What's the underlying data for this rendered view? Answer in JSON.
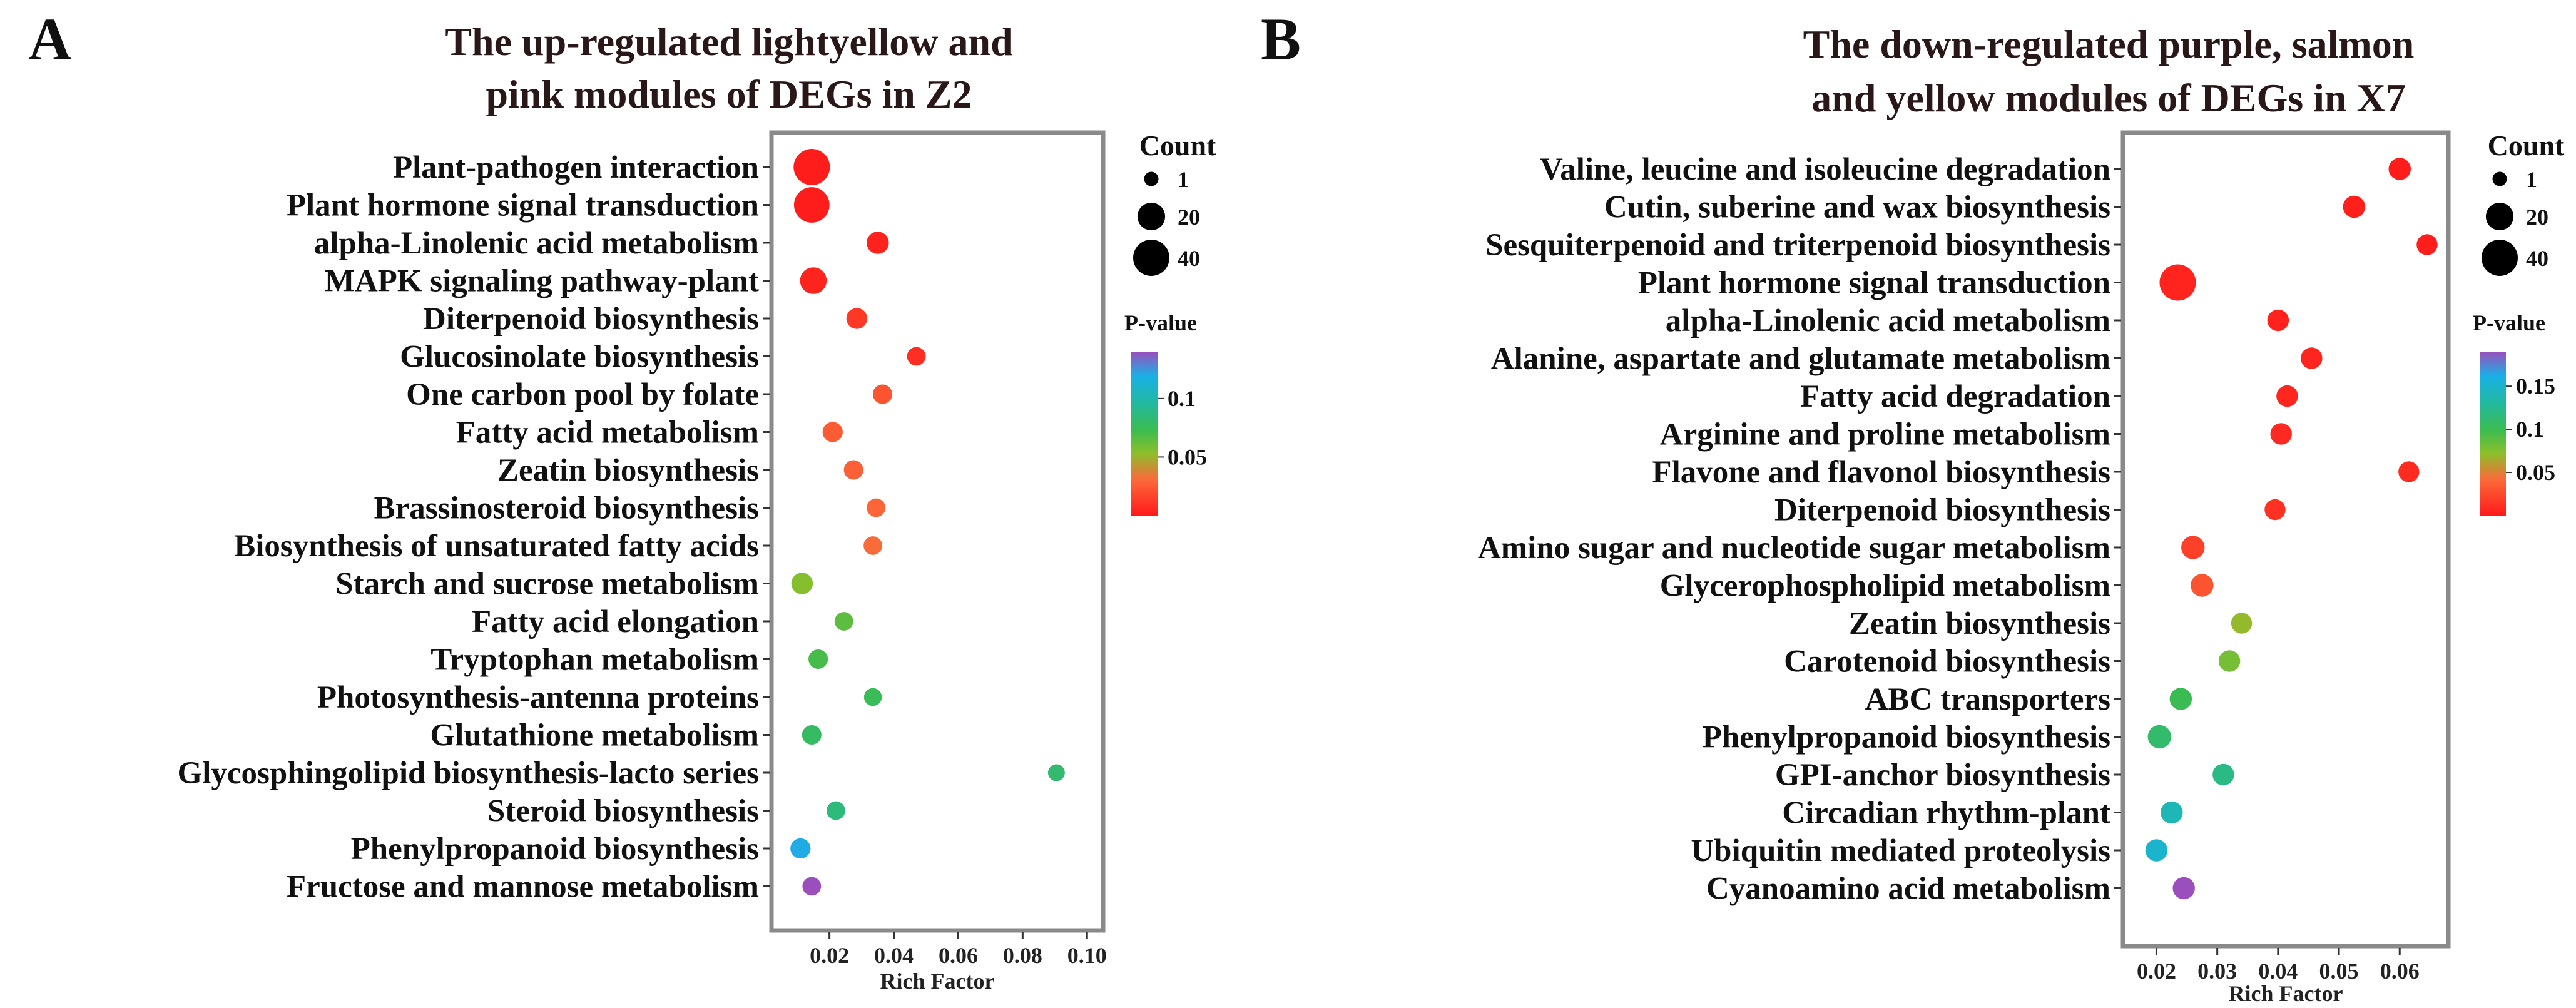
{
  "chart_data": [
    {
      "type": "scatter",
      "panel_label": "A",
      "title_lines": [
        "The up-regulated lightyellow and",
        "pink modules of DEGs in Z2"
      ],
      "xlabel": "Rich  Factor",
      "ylabel": "",
      "xlim": [
        0.002,
        0.105
      ],
      "xticks": [
        0.02,
        0.04,
        0.06,
        0.08,
        0.1
      ],
      "xtick_labels": [
        "0.02",
        "0.04",
        "0.06",
        "0.08",
        "0.10"
      ],
      "grid": false,
      "size_legend": {
        "title": "Count",
        "values": [
          1,
          20,
          40
        ],
        "labels": [
          "1",
          "20",
          "40"
        ]
      },
      "color_legend": {
        "title": "P-value",
        "ticks": [
          0.05,
          0.1
        ],
        "tick_labels": [
          "0.05",
          "0.1"
        ],
        "range": [
          0,
          0.14
        ]
      },
      "categories": [
        "Plant-pathogen interaction",
        "Plant hormone signal transduction",
        "alpha-Linolenic acid metabolism",
        "MAPK signaling pathway-plant",
        "Diterpenoid biosynthesis",
        "Glucosinolate biosynthesis",
        "One carbon pool by folate",
        "Fatty acid metabolism",
        "Zeatin biosynthesis",
        "Brassinosteroid biosynthesis",
        "Biosynthesis of unsaturated fatty acids",
        "Starch and sucrose metabolism",
        "Fatty acid elongation",
        "Tryptophan metabolism",
        "Photosynthesis-antenna proteins",
        "Glutathione metabolism",
        "Glycosphingolipid biosynthesis-lacto series",
        "Steroid biosynthesis",
        "Phenylpropanoid biosynthesis",
        "Fructose and mannose metabolism"
      ],
      "points": [
        {
          "rich_factor": 0.0145,
          "count": 40,
          "p_value": 0.001
        },
        {
          "rich_factor": 0.0145,
          "count": 38,
          "p_value": 0.001
        },
        {
          "rich_factor": 0.035,
          "count": 10,
          "p_value": 0.003
        },
        {
          "rich_factor": 0.015,
          "count": 18,
          "p_value": 0.004
        },
        {
          "rich_factor": 0.0285,
          "count": 8,
          "p_value": 0.012
        },
        {
          "rich_factor": 0.047,
          "count": 5,
          "p_value": 0.008
        },
        {
          "rich_factor": 0.0365,
          "count": 6,
          "p_value": 0.022
        },
        {
          "rich_factor": 0.021,
          "count": 7,
          "p_value": 0.025
        },
        {
          "rich_factor": 0.0275,
          "count": 6,
          "p_value": 0.027
        },
        {
          "rich_factor": 0.0345,
          "count": 5,
          "p_value": 0.029
        },
        {
          "rich_factor": 0.0335,
          "count": 5,
          "p_value": 0.031
        },
        {
          "rich_factor": 0.0115,
          "count": 9,
          "p_value": 0.055
        },
        {
          "rich_factor": 0.0245,
          "count": 5,
          "p_value": 0.065
        },
        {
          "rich_factor": 0.0165,
          "count": 6,
          "p_value": 0.07
        },
        {
          "rich_factor": 0.0335,
          "count": 4,
          "p_value": 0.075
        },
        {
          "rich_factor": 0.0145,
          "count": 6,
          "p_value": 0.078
        },
        {
          "rich_factor": 0.0905,
          "count": 3,
          "p_value": 0.082
        },
        {
          "rich_factor": 0.022,
          "count": 5,
          "p_value": 0.085
        },
        {
          "rich_factor": 0.011,
          "count": 7,
          "p_value": 0.12
        },
        {
          "rich_factor": 0.0145,
          "count": 5,
          "p_value": 0.14
        }
      ]
    },
    {
      "type": "scatter",
      "panel_label": "B",
      "title_lines": [
        "The down-regulated purple, salmon",
        "and yellow modules of DEGs in X7"
      ],
      "xlabel": "Rich  Factor",
      "ylabel": "",
      "xlim": [
        0.0145,
        0.068
      ],
      "xticks": [
        0.02,
        0.03,
        0.04,
        0.05,
        0.06
      ],
      "xtick_labels": [
        "0.02",
        "0.03",
        "0.04",
        "0.05",
        "0.06"
      ],
      "grid": false,
      "size_legend": {
        "title": "Count",
        "values": [
          1,
          20,
          40
        ],
        "labels": [
          "1",
          "20",
          "40"
        ]
      },
      "color_legend": {
        "title": "P-value",
        "ticks": [
          0.05,
          0.1,
          0.15
        ],
        "tick_labels": [
          "0.05",
          "0.1",
          "0.15"
        ],
        "range": [
          0,
          0.19
        ]
      },
      "categories": [
        "Valine, leucine and isoleucine degradation",
        "Cutin, suberine and wax biosynthesis",
        "Sesquiterpenoid and triterpenoid biosynthesis",
        "Plant hormone signal transduction",
        "alpha-Linolenic acid metabolism",
        "Alanine, aspartate and glutamate metabolism",
        "Fatty acid degradation",
        "Arginine and proline metabolism",
        "Flavone and flavonol biosynthesis",
        "Diterpenoid biosynthesis",
        "Amino sugar and nucleotide sugar metabolism",
        "Glycerophospholipid metabolism",
        "Zeatin biosynthesis",
        "Carotenoid biosynthesis",
        "ABC transporters",
        "Phenylpropanoid biosynthesis",
        "GPI-anchor biosynthesis",
        "Circadian rhythm-plant",
        "Ubiquitin mediated proteolysis",
        "Cyanoamino acid metabolism"
      ],
      "points": [
        {
          "rich_factor": 0.06,
          "count": 10,
          "p_value": 0.001
        },
        {
          "rich_factor": 0.0525,
          "count": 10,
          "p_value": 0.003
        },
        {
          "rich_factor": 0.0645,
          "count": 8,
          "p_value": 0.002
        },
        {
          "rich_factor": 0.0235,
          "count": 40,
          "p_value": 0.005
        },
        {
          "rich_factor": 0.04,
          "count": 9,
          "p_value": 0.004
        },
        {
          "rich_factor": 0.0455,
          "count": 9,
          "p_value": 0.006
        },
        {
          "rich_factor": 0.0415,
          "count": 9,
          "p_value": 0.007
        },
        {
          "rich_factor": 0.0405,
          "count": 9,
          "p_value": 0.008
        },
        {
          "rich_factor": 0.0615,
          "count": 8,
          "p_value": 0.009
        },
        {
          "rich_factor": 0.0395,
          "count": 8,
          "p_value": 0.012
        },
        {
          "rich_factor": 0.026,
          "count": 12,
          "p_value": 0.02
        },
        {
          "rich_factor": 0.0275,
          "count": 11,
          "p_value": 0.03
        },
        {
          "rich_factor": 0.034,
          "count": 8,
          "p_value": 0.07
        },
        {
          "rich_factor": 0.032,
          "count": 9,
          "p_value": 0.08
        },
        {
          "rich_factor": 0.024,
          "count": 10,
          "p_value": 0.1
        },
        {
          "rich_factor": 0.0205,
          "count": 12,
          "p_value": 0.11
        },
        {
          "rich_factor": 0.031,
          "count": 9,
          "p_value": 0.12
        },
        {
          "rich_factor": 0.0225,
          "count": 10,
          "p_value": 0.14
        },
        {
          "rich_factor": 0.02,
          "count": 10,
          "p_value": 0.15
        },
        {
          "rich_factor": 0.0245,
          "count": 10,
          "p_value": 0.19
        }
      ]
    }
  ]
}
